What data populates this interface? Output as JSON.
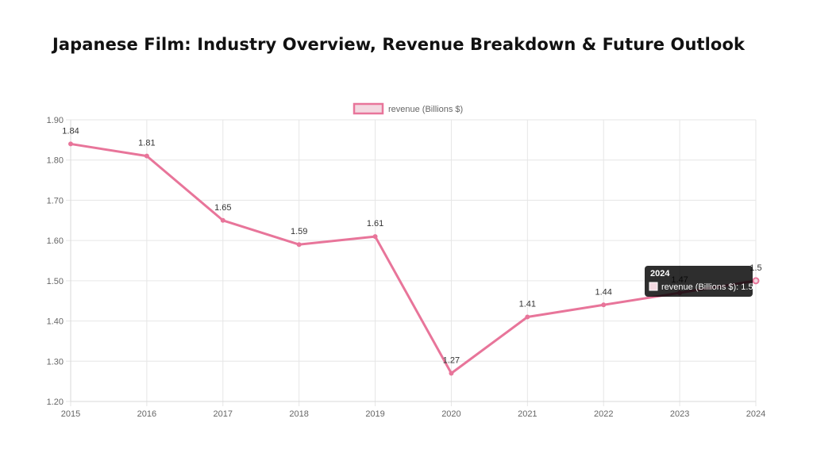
{
  "page": {
    "title": "Japanese Film: Industry Overview, Revenue Breakdown & Future Outlook"
  },
  "colors": {
    "line": "#e8759a",
    "legend_fill": "#f3d9e1",
    "grid": "#e6e6e6",
    "tooltip_bg": "#000000"
  },
  "chart_data": {
    "type": "line",
    "title": "Japanese Film: Industry Overview, Revenue Breakdown & Future Outlook",
    "xlabel": "",
    "ylabel": "",
    "categories": [
      "2015",
      "2016",
      "2017",
      "2018",
      "2019",
      "2020",
      "2021",
      "2022",
      "2023",
      "2024"
    ],
    "series": [
      {
        "name": "revenue (Billions $)",
        "values": [
          1.84,
          1.81,
          1.65,
          1.59,
          1.61,
          1.27,
          1.41,
          1.44,
          1.47,
          1.5
        ]
      }
    ],
    "ylim": [
      1.2,
      1.9
    ],
    "yticks": [
      "1.20",
      "1.30",
      "1.40",
      "1.50",
      "1.60",
      "1.70",
      "1.80",
      "1.90"
    ],
    "grid": true,
    "legend": "top-center",
    "data_labels": [
      "1.84",
      "1.81",
      "1.65",
      "1.59",
      "1.61",
      "1.27",
      "1.41",
      "1.44",
      "1.47",
      "1.5"
    ],
    "tooltip": {
      "title": "2024",
      "text": "revenue (Billions $): 1.5"
    }
  }
}
